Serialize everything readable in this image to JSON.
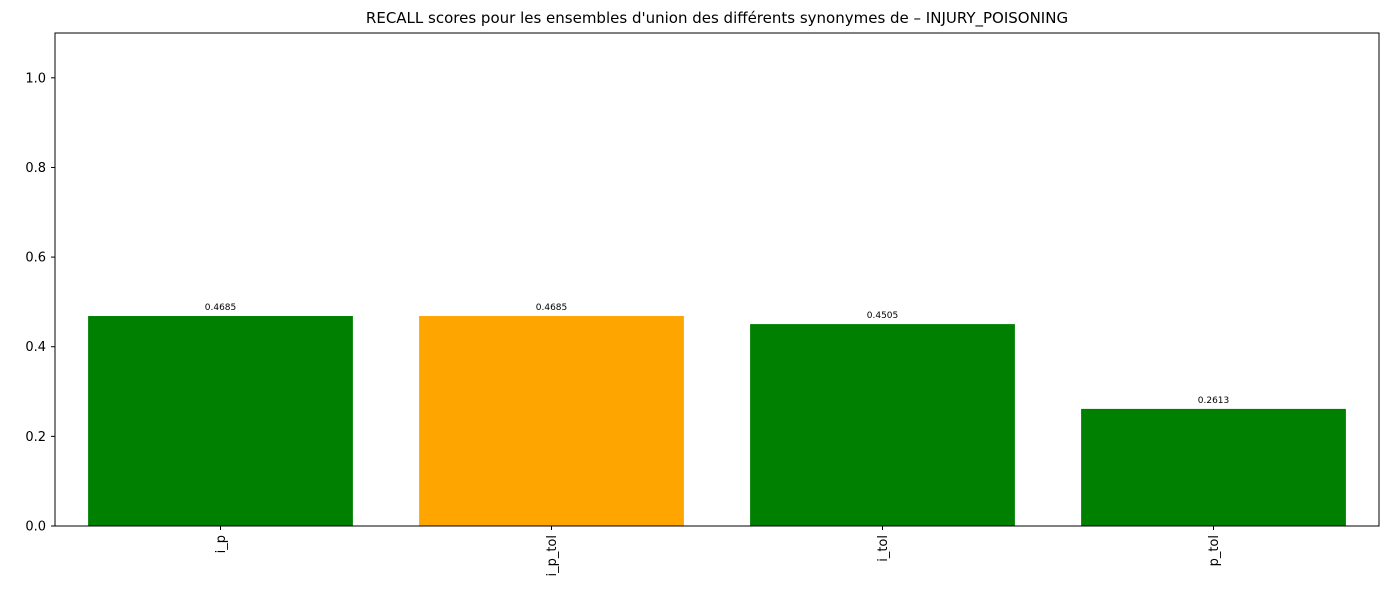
{
  "chart_data": {
    "type": "bar",
    "title": "RECALL scores pour les ensembles d'union des différents synonymes de – INJURY_POISONING",
    "xlabel": "",
    "ylabel": "",
    "categories": [
      "i_p",
      "i_p_tol",
      "i_tol",
      "p_tol"
    ],
    "values": [
      0.4685,
      0.4685,
      0.4505,
      0.2613
    ],
    "value_labels": [
      "0.4685",
      "0.4685",
      "0.4505",
      "0.2613"
    ],
    "bar_colors": [
      "#008000",
      "#FFA500",
      "#008000",
      "#008000"
    ],
    "ylim": [
      0,
      1.1
    ],
    "yticks": [
      0.0,
      0.2,
      0.4,
      0.6,
      0.8,
      1.0
    ],
    "ytick_labels": [
      "0.0",
      "0.2",
      "0.4",
      "0.6",
      "0.8",
      "1.0"
    ],
    "grid": false,
    "xtick_rotation": "vertical"
  }
}
